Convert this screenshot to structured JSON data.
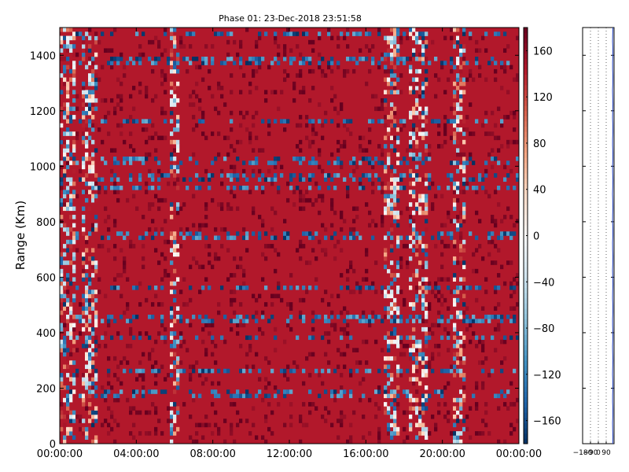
{
  "chart_data": {
    "type": "heatmap",
    "title": "Phase 01: 23-Dec-2018 23:51:58",
    "xlabel": "",
    "ylabel": "Range (Km)",
    "x_ticks": [
      "00:00:00",
      "04:00:00",
      "08:00:00",
      "12:00:00",
      "16:00:00",
      "20:00:00",
      "00:00:00"
    ],
    "x_hours": [
      0,
      4,
      8,
      12,
      16,
      20,
      24
    ],
    "xlim_hours": [
      0,
      24
    ],
    "y_ticks": [
      0,
      200,
      400,
      600,
      800,
      1000,
      1200,
      1400
    ],
    "ylim": [
      0,
      1500
    ],
    "colorbar": {
      "label": "",
      "ticks": [
        160,
        120,
        80,
        40,
        0,
        -40,
        -80,
        -120,
        -160
      ],
      "range": [
        -180,
        180
      ],
      "colormap": "RdBu_r",
      "colors": [
        "#053061",
        "#2166ac",
        "#4393c3",
        "#92c5de",
        "#d1e5f0",
        "#f7f7f7",
        "#fddbc7",
        "#f4a582",
        "#d6604d",
        "#b2182b",
        "#67001f"
      ]
    },
    "dominant_phase_deg": 170,
    "dominant_color": "#b2182b",
    "noisy_time_bands_hours": [
      [
        0,
        0.8
      ],
      [
        1.2,
        1.9
      ],
      [
        5.7,
        6.3
      ],
      [
        17.0,
        17.8
      ],
      [
        18.3,
        19.2
      ],
      [
        20.6,
        21.2
      ]
    ],
    "noisy_range_rows_km": [
      1480,
      1380,
      1160,
      1020,
      960,
      920,
      760,
      740,
      560,
      450,
      380,
      260,
      180
    ],
    "side_panel": {
      "x_ticks": [
        "-180",
        "-90",
        "0",
        "90"
      ],
      "xlim": [
        -180,
        180
      ],
      "ylim": [
        0,
        1500
      ],
      "line_value": 165,
      "grid": "dotted"
    },
    "grid": false
  }
}
